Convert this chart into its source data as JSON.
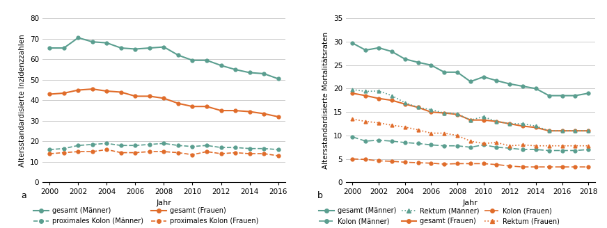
{
  "panel_a": {
    "years": [
      2000,
      2001,
      2002,
      2003,
      2004,
      2005,
      2006,
      2007,
      2008,
      2009,
      2010,
      2011,
      2012,
      2013,
      2014,
      2015,
      2016
    ],
    "gesamt_maenner": [
      65.5,
      65.5,
      70.5,
      68.5,
      68.0,
      65.5,
      65.0,
      65.5,
      66.0,
      62.0,
      59.5,
      59.5,
      57.0,
      55.0,
      53.5,
      53.0,
      50.5
    ],
    "gesamt_frauen": [
      43.0,
      43.5,
      45.0,
      45.5,
      44.5,
      44.0,
      42.0,
      42.0,
      41.0,
      38.5,
      37.0,
      37.0,
      35.0,
      35.0,
      34.5,
      33.5,
      32.0
    ],
    "proximal_maenner": [
      16.0,
      16.5,
      18.0,
      18.5,
      19.0,
      18.0,
      18.0,
      18.5,
      19.0,
      18.0,
      17.5,
      18.0,
      17.0,
      17.0,
      16.5,
      16.5,
      16.0
    ],
    "proximal_frauen": [
      14.0,
      14.5,
      15.0,
      15.0,
      16.0,
      14.5,
      14.5,
      15.0,
      15.0,
      14.5,
      13.5,
      15.0,
      14.0,
      14.5,
      14.0,
      14.0,
      13.0
    ],
    "ylabel": "Altersstandardisierte Inzidenzzahlen",
    "xlabel": "Jahr",
    "ylim": [
      0,
      80
    ],
    "yticks": [
      0,
      10,
      20,
      30,
      40,
      50,
      60,
      70,
      80
    ],
    "label_a": "a"
  },
  "panel_b": {
    "years": [
      2000,
      2001,
      2002,
      2003,
      2004,
      2005,
      2006,
      2007,
      2008,
      2009,
      2010,
      2011,
      2012,
      2013,
      2014,
      2015,
      2016,
      2017,
      2018
    ],
    "gesamt_maenner": [
      29.7,
      28.2,
      28.7,
      27.9,
      26.3,
      25.6,
      25.0,
      23.5,
      23.5,
      21.5,
      22.5,
      21.7,
      21.0,
      20.5,
      20.0,
      18.5,
      18.5,
      18.5,
      19.0
    ],
    "gesamt_frauen": [
      19.0,
      18.5,
      17.9,
      17.5,
      16.7,
      16.0,
      15.0,
      14.8,
      14.5,
      13.3,
      13.3,
      13.0,
      12.5,
      12.0,
      11.7,
      11.0,
      11.0,
      11.0,
      11.0
    ],
    "kolon_maenner": [
      9.7,
      8.8,
      9.0,
      8.8,
      8.5,
      8.3,
      8.0,
      7.8,
      7.8,
      7.5,
      8.0,
      7.5,
      7.3,
      7.0,
      7.0,
      6.8,
      6.8,
      6.8,
      7.0
    ],
    "kolon_frauen": [
      5.0,
      4.9,
      4.6,
      4.5,
      4.3,
      4.2,
      4.1,
      3.9,
      4.0,
      4.0,
      4.0,
      3.8,
      3.5,
      3.3,
      3.3,
      3.3,
      3.3,
      3.3,
      3.3
    ],
    "rektum_maenner": [
      19.8,
      19.4,
      19.5,
      18.5,
      17.0,
      16.0,
      15.5,
      14.8,
      14.6,
      13.3,
      14.0,
      13.0,
      12.5,
      12.5,
      12.0,
      11.0,
      11.0,
      11.0,
      11.0
    ],
    "rektum_frauen": [
      13.5,
      13.0,
      12.7,
      12.2,
      11.8,
      11.2,
      10.5,
      10.5,
      10.0,
      8.8,
      8.3,
      8.5,
      7.8,
      8.0,
      7.8,
      7.8,
      7.8,
      7.8,
      7.8
    ],
    "ylabel": "Altersstandardisierte Mortalitätsraten",
    "xlabel": "Jahr",
    "ylim": [
      0,
      35
    ],
    "yticks": [
      0,
      5,
      10,
      15,
      20,
      25,
      30,
      35
    ],
    "label_b": "b"
  },
  "color_green": "#5a9e8f",
  "color_orange": "#e06c2a",
  "bg_color": "#ffffff"
}
